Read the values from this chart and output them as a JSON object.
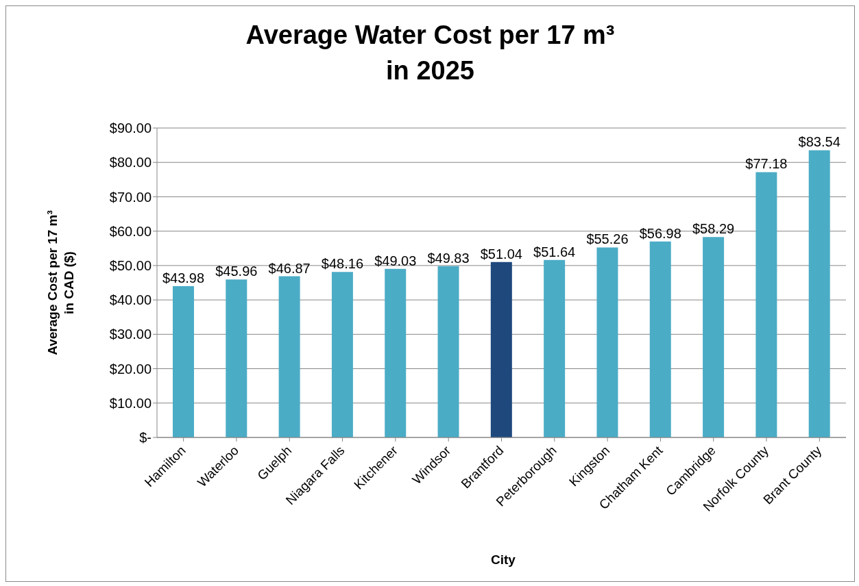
{
  "chart_data": {
    "type": "bar",
    "title": "Average Water Cost per 17 m³\nin 2025",
    "xlabel": "City",
    "ylabel": "Average Cost per 17 m³\nin CAD ($)",
    "categories": [
      "Hamilton",
      "Waterloo",
      "Guelph",
      "Niagara Falls",
      "Kitchener",
      "Windsor",
      "Brantford",
      "Peterborough",
      "Kingston",
      "Chatham Kent",
      "Cambridge",
      "Norfolk County",
      "Brant County"
    ],
    "values": [
      43.98,
      45.96,
      46.87,
      48.16,
      49.03,
      49.83,
      51.04,
      51.64,
      55.26,
      56.98,
      58.29,
      77.18,
      83.54
    ],
    "colors": [
      "#4bacc6",
      "#4bacc6",
      "#4bacc6",
      "#4bacc6",
      "#4bacc6",
      "#4bacc6",
      "#1f497d",
      "#4bacc6",
      "#4bacc6",
      "#4bacc6",
      "#4bacc6",
      "#4bacc6",
      "#4bacc6"
    ],
    "value_labels": [
      "$43.98",
      "$45.96",
      "$46.87",
      "$48.16",
      "$49.03",
      "$49.83",
      "$51.04",
      "$51.64",
      "$55.26",
      "$56.98",
      "$58.29",
      "$77.18",
      "$83.54"
    ],
    "ylim": [
      0,
      90
    ],
    "yticks": [
      {
        "value": 0,
        "label": "$-"
      },
      {
        "value": 10,
        "label": "$10.00"
      },
      {
        "value": 20,
        "label": "$20.00"
      },
      {
        "value": 30,
        "label": "$30.00"
      },
      {
        "value": 40,
        "label": "$40.00"
      },
      {
        "value": 50,
        "label": "$50.00"
      },
      {
        "value": 60,
        "label": "$60.00"
      },
      {
        "value": 70,
        "label": "$70.00"
      },
      {
        "value": 80,
        "label": "$80.00"
      },
      {
        "value": 90,
        "label": "$90.00"
      }
    ],
    "grid": "y"
  }
}
